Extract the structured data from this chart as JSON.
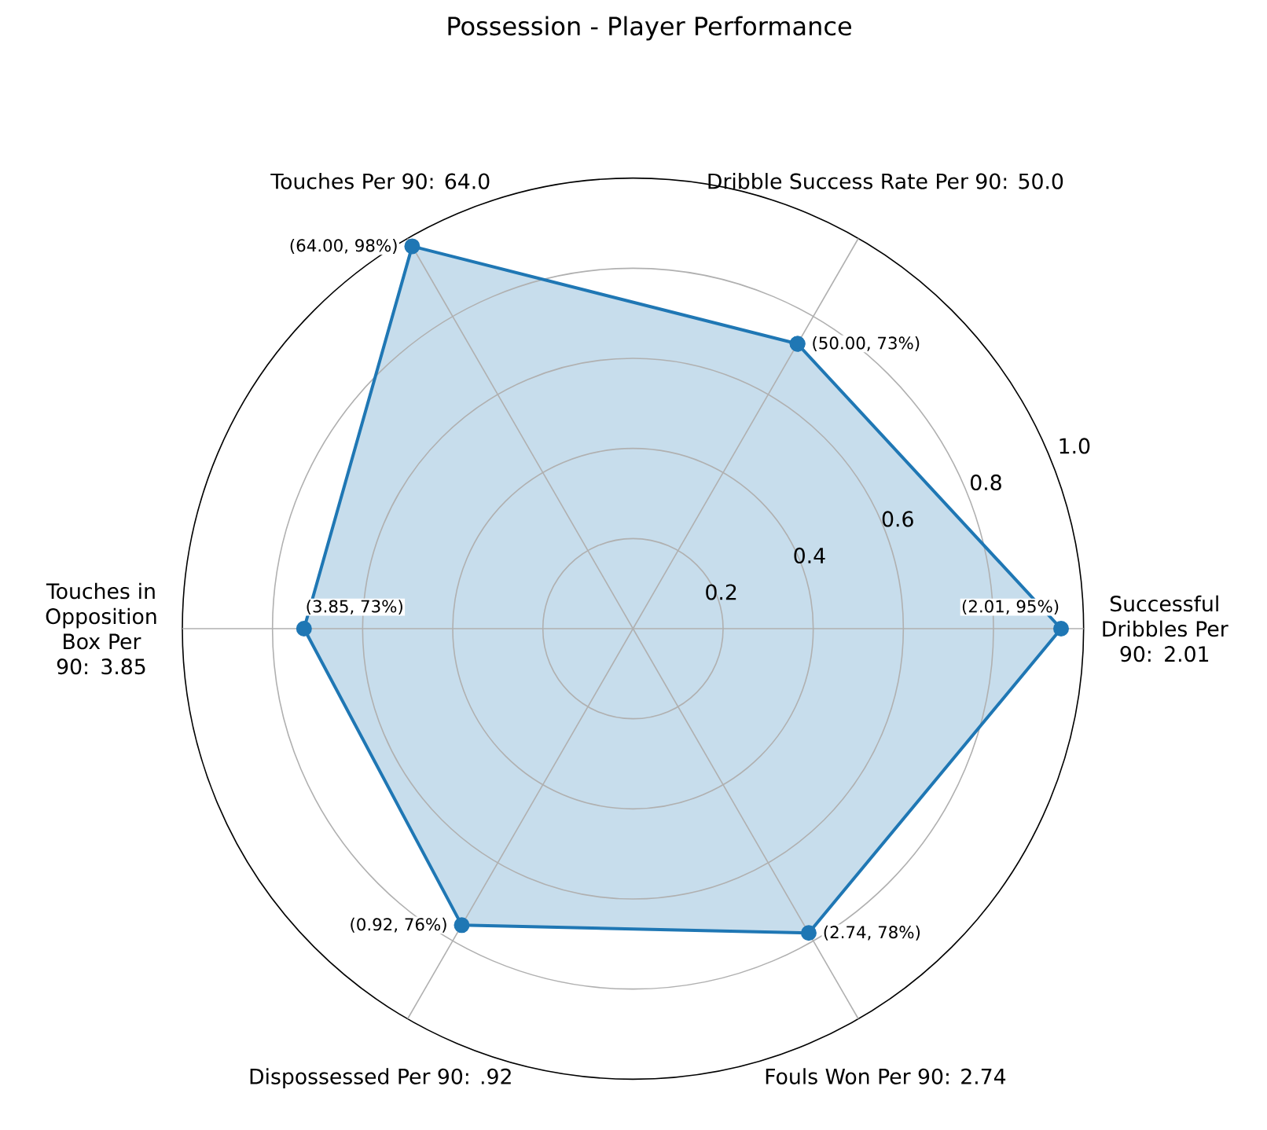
{
  "chart_data": {
    "type": "radar",
    "title": "Possession - Player Performance",
    "categories": [
      "Dribble Success Rate Per 90: 50.0",
      "Successful Dribbles Per 90: 2.01",
      "Fouls Won Per 90: 2.74",
      "Dispossessed Per 90: .92",
      "Touches in Opposition Box Per 90: 3.85",
      "Touches Per 90: 64.0"
    ],
    "series": [
      {
        "color": "#1f77b4",
        "values": [
          0.73,
          0.95,
          0.78,
          0.76,
          0.73,
          0.98
        ],
        "value_labels": [
          "(50.00, 73%)",
          "(2.01, 95%)",
          "(2.74, 78%)",
          "(0.92, 76%)",
          "(3.85, 73%)",
          "(64.00, 98%)"
        ]
      }
    ],
    "ylim": [
      0,
      1
    ],
    "yticks": [
      0.2,
      0.4,
      0.6,
      0.8,
      {
        "value": 1,
        "label": "1.0"
      }
    ],
    "grid": true,
    "marker": "circle"
  }
}
